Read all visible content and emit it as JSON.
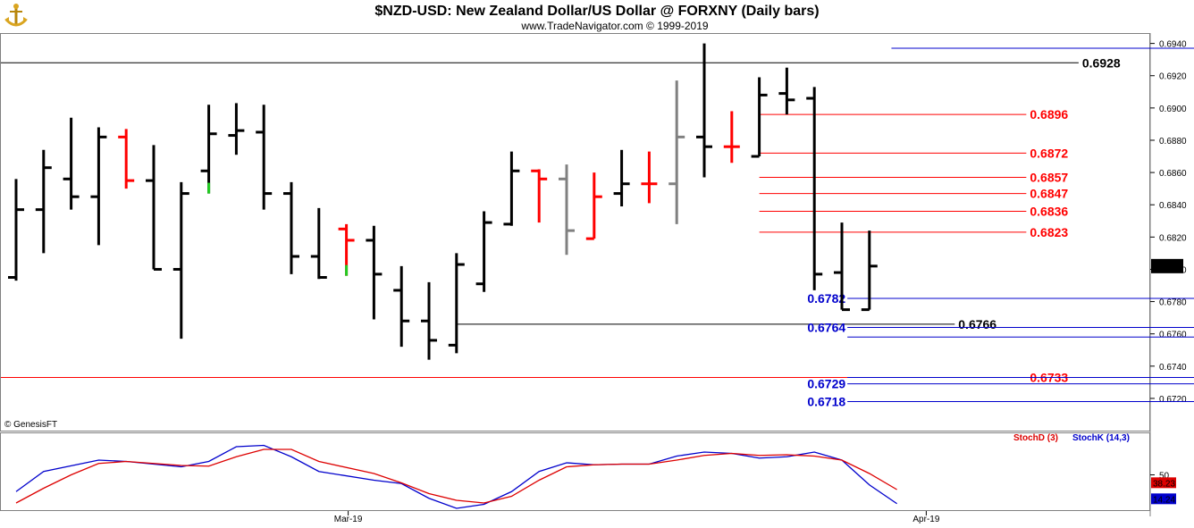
{
  "header": {
    "title": "$NZD-USD:  New Zealand Dollar/US Dollar @ FORXNY  (Daily bars)",
    "subtitle": "www.TradeNavigator.com © 1999-2019",
    "logo_icon": "anchor-logo-icon"
  },
  "copyright": "© GenesisFT",
  "colors": {
    "up": "#000000",
    "down": "#ff0000",
    "gray": "#808080",
    "support": "#0000cc",
    "resistance": "#ff0000",
    "stochD": "#dd0000",
    "stochK": "#0000cc",
    "current": "#000000"
  },
  "chart_data": [
    {
      "type": "ohlc",
      "title": "$NZD-USD:  New Zealand Dollar/US Dollar @ FORXNY  (Daily bars)",
      "ylim": [
        0.671,
        0.6942
      ],
      "y_ticks": [
        "0.6940",
        "0.6920",
        "0.6900",
        "0.6880",
        "0.6860",
        "0.6840",
        "0.6820",
        "0.6800",
        "0.6780",
        "0.6760",
        "0.6740",
        "0.6720"
      ],
      "x_ticks": [
        {
          "label": "Mar-19",
          "index": 12
        },
        {
          "label": "Apr-19",
          "index": 33
        }
      ],
      "current_price": "0.6802",
      "bars": [
        {
          "o": 0.6795,
          "h": 0.6856,
          "l": 0.6793,
          "c": 0.6837,
          "col": "up"
        },
        {
          "o": 0.6837,
          "h": 0.6874,
          "l": 0.681,
          "c": 0.6863,
          "col": "up"
        },
        {
          "o": 0.6856,
          "h": 0.6894,
          "l": 0.6837,
          "c": 0.6845,
          "col": "up"
        },
        {
          "o": 0.6845,
          "h": 0.6888,
          "l": 0.6815,
          "c": 0.6882,
          "col": "up"
        },
        {
          "o": 0.6882,
          "h": 0.6887,
          "l": 0.685,
          "c": 0.6855,
          "col": "down"
        },
        {
          "o": 0.6855,
          "h": 0.6877,
          "l": 0.68,
          "c": 0.68,
          "col": "up"
        },
        {
          "o": 0.68,
          "h": 0.6854,
          "l": 0.6757,
          "c": 0.6847,
          "col": "up"
        },
        {
          "o": 0.6861,
          "h": 0.6902,
          "l": 0.6847,
          "c": 0.6884,
          "col": "up",
          "low_tick": "green"
        },
        {
          "o": 0.6883,
          "h": 0.6903,
          "l": 0.6871,
          "c": 0.6886,
          "col": "up"
        },
        {
          "o": 0.6885,
          "h": 0.6902,
          "l": 0.6837,
          "c": 0.6847,
          "col": "up"
        },
        {
          "o": 0.6847,
          "h": 0.6854,
          "l": 0.6797,
          "c": 0.6808,
          "col": "up"
        },
        {
          "o": 0.6808,
          "h": 0.6838,
          "l": 0.6794,
          "c": 0.6795,
          "col": "up"
        },
        {
          "o": 0.6825,
          "h": 0.6828,
          "l": 0.6796,
          "c": 0.6818,
          "col": "down",
          "low_tick": "green"
        },
        {
          "o": 0.6818,
          "h": 0.6827,
          "l": 0.6769,
          "c": 0.6797,
          "col": "up"
        },
        {
          "o": 0.6787,
          "h": 0.6802,
          "l": 0.6752,
          "c": 0.6768,
          "col": "up"
        },
        {
          "o": 0.6768,
          "h": 0.6792,
          "l": 0.6744,
          "c": 0.6756,
          "col": "up"
        },
        {
          "o": 0.6753,
          "h": 0.681,
          "l": 0.6748,
          "c": 0.6803,
          "col": "up"
        },
        {
          "o": 0.6791,
          "h": 0.6836,
          "l": 0.6786,
          "c": 0.6829,
          "col": "up"
        },
        {
          "o": 0.6828,
          "h": 0.6873,
          "l": 0.6827,
          "c": 0.6861,
          "col": "up"
        },
        {
          "o": 0.6861,
          "h": 0.6862,
          "l": 0.6829,
          "c": 0.6856,
          "col": "down"
        },
        {
          "o": 0.6856,
          "h": 0.6865,
          "l": 0.6809,
          "c": 0.6824,
          "col": "gray"
        },
        {
          "o": 0.6819,
          "h": 0.686,
          "l": 0.6819,
          "c": 0.6845,
          "col": "down"
        },
        {
          "o": 0.6847,
          "h": 0.6874,
          "l": 0.6839,
          "c": 0.6853,
          "col": "up"
        },
        {
          "o": 0.6853,
          "h": 0.6873,
          "l": 0.6841,
          "c": 0.6853,
          "col": "down"
        },
        {
          "o": 0.6853,
          "h": 0.6917,
          "l": 0.6828,
          "c": 0.6882,
          "col": "gray"
        },
        {
          "o": 0.6882,
          "h": 0.694,
          "l": 0.6857,
          "c": 0.6876,
          "col": "up"
        },
        {
          "o": 0.6876,
          "h": 0.6898,
          "l": 0.6866,
          "c": 0.6876,
          "col": "down"
        },
        {
          "o": 0.687,
          "h": 0.6919,
          "l": 0.687,
          "c": 0.6908,
          "col": "up"
        },
        {
          "o": 0.6909,
          "h": 0.6925,
          "l": 0.6896,
          "c": 0.6905,
          "col": "up"
        },
        {
          "o": 0.6906,
          "h": 0.6913,
          "l": 0.6787,
          "c": 0.6797,
          "col": "up"
        },
        {
          "o": 0.6798,
          "h": 0.6829,
          "l": 0.6775,
          "c": 0.6775,
          "col": "up"
        },
        {
          "o": 0.6775,
          "h": 0.6824,
          "l": 0.6775,
          "c": 0.6802,
          "col": "up"
        }
      ],
      "levels": [
        {
          "value": 0.6937,
          "label": "0.6937",
          "color": "support",
          "x1": 31.8,
          "x2": 42.8,
          "label_side": "right"
        },
        {
          "value": 0.6928,
          "label": "0.6928",
          "color": "current",
          "x1": -1,
          "x2": 38.6,
          "label_side": "right"
        },
        {
          "value": 0.6896,
          "label": "0.6896",
          "color": "resistance",
          "x1": 27,
          "x2": 36.7,
          "label_side": "right"
        },
        {
          "value": 0.6872,
          "label": "0.6872",
          "color": "resistance",
          "x1": 27,
          "x2": 36.7,
          "label_side": "right"
        },
        {
          "value": 0.6857,
          "label": "0.6857",
          "color": "resistance",
          "x1": 27,
          "x2": 36.7,
          "label_side": "right"
        },
        {
          "value": 0.6847,
          "label": "0.6847",
          "color": "resistance",
          "x1": 27,
          "x2": 36.7,
          "label_side": "right"
        },
        {
          "value": 0.6836,
          "label": "0.6836",
          "color": "resistance",
          "x1": 27,
          "x2": 36.7,
          "label_side": "right"
        },
        {
          "value": 0.6823,
          "label": "0.6823",
          "color": "resistance",
          "x1": 27,
          "x2": 36.7,
          "label_side": "right"
        },
        {
          "value": 0.6782,
          "label": "0.6782",
          "color": "support",
          "x1": 30.2,
          "x2": 42.8,
          "label_side": "left"
        },
        {
          "value": 0.6766,
          "label": "0.6766",
          "color": "current",
          "x1": 16,
          "x2": 34.1,
          "label_side": "right"
        },
        {
          "value": 0.6764,
          "label": "0.6764",
          "color": "support",
          "x1": 30.2,
          "x2": 42.8,
          "label_side": "left"
        },
        {
          "value": 0.6758,
          "label": "0.6758",
          "color": "support",
          "x1": 30.2,
          "x2": 42.8,
          "label_side": "right"
        },
        {
          "value": 0.6733,
          "label": "0.6733",
          "color": "resistance",
          "x1": -1,
          "x2": 36.7,
          "label_side": "right"
        },
        {
          "value": 0.6733,
          "label": "0.6733",
          "color": "support",
          "x1": 30.2,
          "x2": 42.8,
          "label_side": "right"
        },
        {
          "value": 0.6729,
          "label": "0.6729",
          "color": "support",
          "x1": 30.2,
          "x2": 42.8,
          "label_side": "left"
        },
        {
          "value": 0.6718,
          "label": "0.6718",
          "color": "support",
          "x1": 30.2,
          "x2": 42.8,
          "label_side": "both"
        }
      ]
    },
    {
      "type": "line",
      "title": "Stochastic",
      "ylim": [
        0,
        100
      ],
      "y_ticks": [
        "50"
      ],
      "legend": [
        {
          "name": "StochD (3)",
          "color": "stochD"
        },
        {
          "name": "StochK (14,3)",
          "color": "stochK"
        }
      ],
      "series": [
        {
          "name": "StochK (14,3)",
          "color": "stochK",
          "last": "14.24",
          "points": [
            [
              0,
              25
            ],
            [
              1,
              55
            ],
            [
              3,
              72
            ],
            [
              4,
              70
            ],
            [
              6,
              62
            ],
            [
              7,
              70
            ],
            [
              8,
              92
            ],
            [
              9,
              94
            ],
            [
              10,
              77
            ],
            [
              11,
              55
            ],
            [
              13,
              42
            ],
            [
              14,
              37
            ],
            [
              15,
              15
            ],
            [
              16,
              0
            ],
            [
              17,
              6
            ],
            [
              18,
              25
            ],
            [
              19,
              55
            ],
            [
              20,
              68
            ],
            [
              21,
              65
            ],
            [
              22,
              66
            ],
            [
              23,
              66
            ],
            [
              24,
              78
            ],
            [
              25,
              84
            ],
            [
              26,
              82
            ],
            [
              27,
              75
            ],
            [
              28,
              77
            ],
            [
              29,
              84
            ],
            [
              30,
              72
            ],
            [
              31,
              35
            ],
            [
              32,
              7
            ]
          ]
        },
        {
          "name": "StochD (3)",
          "color": "stochD",
          "last": "38.23",
          "points": [
            [
              0,
              8
            ],
            [
              1,
              30
            ],
            [
              2,
              50
            ],
            [
              3,
              67
            ],
            [
              4,
              70
            ],
            [
              6,
              64
            ],
            [
              7,
              63
            ],
            [
              8,
              77
            ],
            [
              9,
              88
            ],
            [
              10,
              88
            ],
            [
              11,
              70
            ],
            [
              13,
              52
            ],
            [
              14,
              38
            ],
            [
              15,
              22
            ],
            [
              16,
              12
            ],
            [
              17,
              8
            ],
            [
              18,
              18
            ],
            [
              19,
              42
            ],
            [
              20,
              62
            ],
            [
              21,
              65
            ],
            [
              22,
              66
            ],
            [
              23,
              66
            ],
            [
              24,
              72
            ],
            [
              25,
              79
            ],
            [
              26,
              82
            ],
            [
              27,
              79
            ],
            [
              28,
              80
            ],
            [
              29,
              78
            ],
            [
              30,
              72
            ],
            [
              31,
              52
            ],
            [
              32,
              28
            ]
          ]
        }
      ]
    }
  ]
}
